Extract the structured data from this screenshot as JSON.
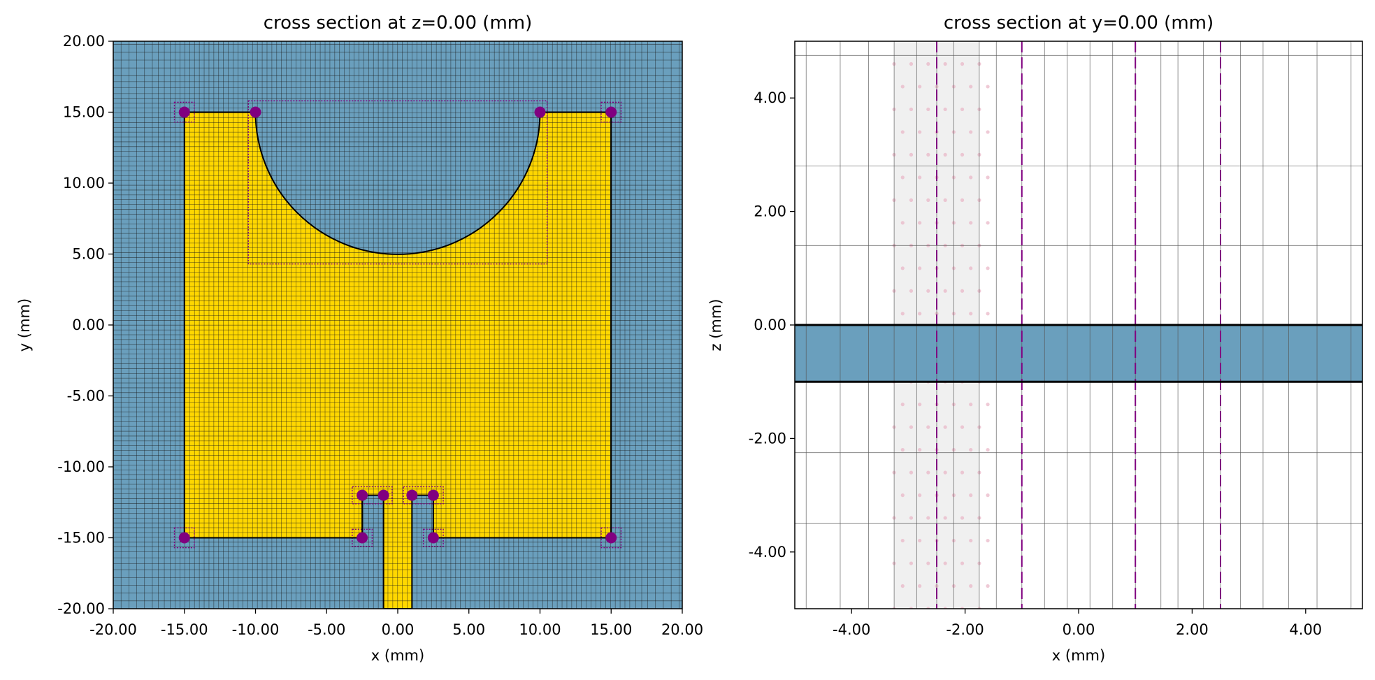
{
  "chart_data": [
    {
      "type": "cross-section",
      "title": "cross section at z=0.00 (mm)",
      "xlabel": "x (mm)",
      "ylabel": "y (mm)",
      "xlim": [
        -20,
        20
      ],
      "ylim": [
        -20,
        20
      ],
      "xticks": [
        -20,
        -15,
        -10,
        -5,
        0,
        5,
        10,
        15,
        20
      ],
      "yticks": [
        -20,
        -15,
        -10,
        -5,
        0,
        5,
        10,
        15,
        20
      ],
      "xtick_labels": [
        "-20.00",
        "-15.00",
        "-10.00",
        "-5.00",
        "0.00",
        "5.00",
        "10.00",
        "15.00",
        "20.00"
      ],
      "ytick_labels": [
        "-20.00",
        "-15.00",
        "-10.00",
        "-5.00",
        "0.00",
        "5.00",
        "10.00",
        "15.00",
        "20.00"
      ],
      "background_color": "#6a9fbd",
      "conductor_color": "#ffd700",
      "marker_color": "#800080",
      "conductor_outline": {
        "vertices": [
          [
            -15,
            15
          ],
          [
            -10,
            15
          ],
          [
            10,
            15
          ],
          [
            15,
            15
          ],
          [
            15,
            -15
          ],
          [
            2.5,
            -15
          ],
          [
            2.5,
            -12
          ],
          [
            1,
            -12
          ],
          [
            1,
            -20
          ],
          [
            -1,
            -20
          ],
          [
            -1,
            -12
          ],
          [
            -2.5,
            -12
          ],
          [
            -2.5,
            -15
          ],
          [
            -15,
            -15
          ]
        ],
        "semicircle_cutout": {
          "center": [
            0,
            15
          ],
          "radius": 10
        }
      },
      "markers": [
        [
          -15,
          15
        ],
        [
          -10,
          15
        ],
        [
          10,
          15
        ],
        [
          15,
          15
        ],
        [
          -15,
          -15
        ],
        [
          15,
          -15
        ],
        [
          -2.5,
          -15
        ],
        [
          2.5,
          -15
        ],
        [
          -2.5,
          -12
        ],
        [
          -1,
          -12
        ],
        [
          1,
          -12
        ],
        [
          2.5,
          -12
        ]
      ],
      "refinement_boxes": [
        [
          -10.5,
          4.3,
          10.5,
          15.8
        ],
        [
          -3.2,
          -12.6,
          -0.4,
          -11.4
        ],
        [
          0.4,
          -12.6,
          3.2,
          -11.4
        ],
        [
          -3.2,
          -15.6,
          -1.8,
          -14.4
        ],
        [
          1.8,
          -15.6,
          3.2,
          -14.4
        ],
        [
          -15.7,
          14.3,
          -14.3,
          15.7
        ],
        [
          14.3,
          14.3,
          15.7,
          15.7
        ],
        [
          -15.7,
          -15.7,
          -14.3,
          -14.3
        ],
        [
          14.3,
          -15.7,
          15.7,
          -14.3
        ]
      ]
    },
    {
      "type": "cross-section",
      "title": "cross section at y=0.00 (mm)",
      "xlabel": "x (mm)",
      "ylabel": "z (mm)",
      "xlim": [
        -5,
        5
      ],
      "ylim": [
        -5,
        5
      ],
      "xticks": [
        -4,
        -2,
        0,
        2,
        4
      ],
      "yticks": [
        -4,
        -2,
        0,
        2,
        4
      ],
      "xtick_labels": [
        "-4.00",
        "-2.00",
        "0.00",
        "2.00",
        "4.00"
      ],
      "ytick_labels": [
        "-4.00",
        "-2.00",
        "0.00",
        "2.00",
        "4.00"
      ],
      "substrate": {
        "z_range": [
          -1,
          0
        ],
        "color": "#6a9fbd"
      },
      "shaded_band": {
        "x_range": [
          -3.25,
          -1.75
        ],
        "color": "#f0f0f0"
      },
      "dashed_lines_x": [
        -2.5,
        -1,
        1,
        2.5
      ],
      "dashed_line_color": "#800080",
      "grid_lines_x": [
        -4.8,
        -4.2,
        -3.7,
        -3.25,
        -2.85,
        -2.5,
        -2.2,
        -1.75,
        -1.45,
        -1,
        -0.6,
        -0.2,
        0.2,
        0.6,
        1,
        1.45,
        1.75,
        2.2,
        2.5,
        2.85,
        3.25,
        3.7,
        4.2,
        4.8
      ],
      "grid_lines_z": [
        4.75,
        2.8,
        1.4,
        0,
        -1,
        -2.25,
        -3.5
      ]
    }
  ]
}
